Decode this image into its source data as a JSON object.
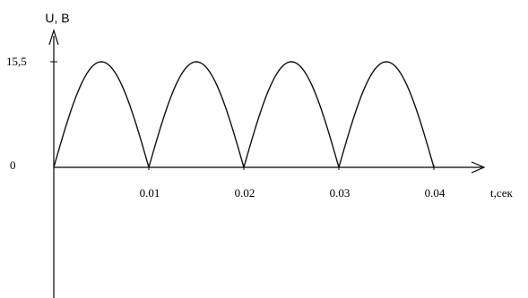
{
  "chart_data": {
    "type": "line",
    "title": "",
    "xlabel": "t,сек",
    "ylabel": "U, В",
    "x_ticks": [
      "0.01",
      "0.02",
      "0.03",
      "0.04"
    ],
    "x_tick_values": [
      0.01,
      0.02,
      0.03,
      0.04
    ],
    "y_ticks": [
      "0",
      "15,5"
    ],
    "y_tick_values": [
      0,
      15.5
    ],
    "xlim": [
      0,
      0.0455
    ],
    "ylim": [
      -13,
      22
    ],
    "grid": false,
    "series": [
      {
        "function": "abs(15.5*sin(2*pi*50*t))",
        "amplitude": 15.5,
        "period": 0.02,
        "x_range": [
          0,
          0.04
        ],
        "points": [
          {
            "x": 0.0,
            "y": 0
          },
          {
            "x": 0.0025,
            "y": 11.0
          },
          {
            "x": 0.005,
            "y": 15.5
          },
          {
            "x": 0.0075,
            "y": 11.0
          },
          {
            "x": 0.01,
            "y": 0
          },
          {
            "x": 0.0125,
            "y": 11.0
          },
          {
            "x": 0.015,
            "y": 15.5
          },
          {
            "x": 0.0175,
            "y": 11.0
          },
          {
            "x": 0.02,
            "y": 0
          },
          {
            "x": 0.0225,
            "y": 11.0
          },
          {
            "x": 0.025,
            "y": 15.5
          },
          {
            "x": 0.0275,
            "y": 11.0
          },
          {
            "x": 0.03,
            "y": 0
          },
          {
            "x": 0.0325,
            "y": 11.0
          },
          {
            "x": 0.035,
            "y": 15.5
          },
          {
            "x": 0.0375,
            "y": 11.0
          },
          {
            "x": 0.04,
            "y": 0
          }
        ]
      }
    ]
  }
}
